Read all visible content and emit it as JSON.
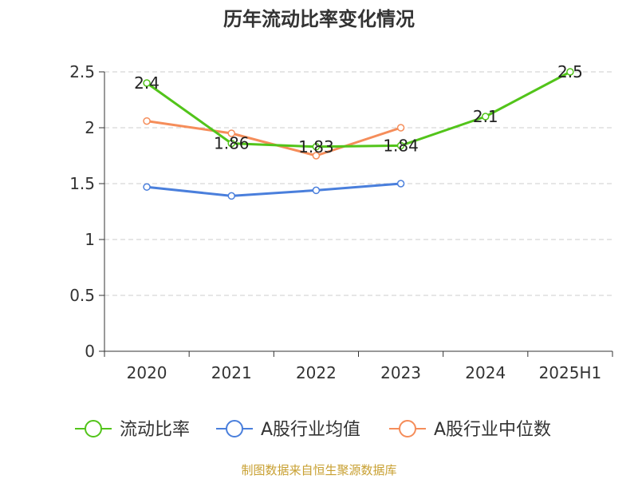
{
  "chart_data": {
    "type": "line",
    "title": "历年流动比率变化情况",
    "categories": [
      "2020",
      "2021",
      "2022",
      "2023",
      "2024",
      "2025H1"
    ],
    "ylim": [
      0,
      2.5
    ],
    "yticks": [
      "0",
      "0.5",
      "1",
      "1.5",
      "2",
      "2.5"
    ],
    "grid": true,
    "legend_position": "bottom",
    "series": [
      {
        "name": "流动比率",
        "color": "#52c41a",
        "values": [
          2.4,
          1.86,
          1.83,
          1.84,
          2.1,
          2.5
        ],
        "labels": [
          "2.4",
          "1.86",
          "1.83",
          "1.84",
          "2.1",
          "2.5"
        ]
      },
      {
        "name": "A股行业均值",
        "color": "#4a7fdc",
        "values": [
          1.47,
          1.39,
          1.44,
          1.5,
          null,
          null
        ]
      },
      {
        "name": "A股行业中位数",
        "color": "#f58d5a",
        "values": [
          2.06,
          1.95,
          1.75,
          2.0,
          null,
          null
        ]
      }
    ]
  },
  "source": "制图数据来自恒生聚源数据库"
}
